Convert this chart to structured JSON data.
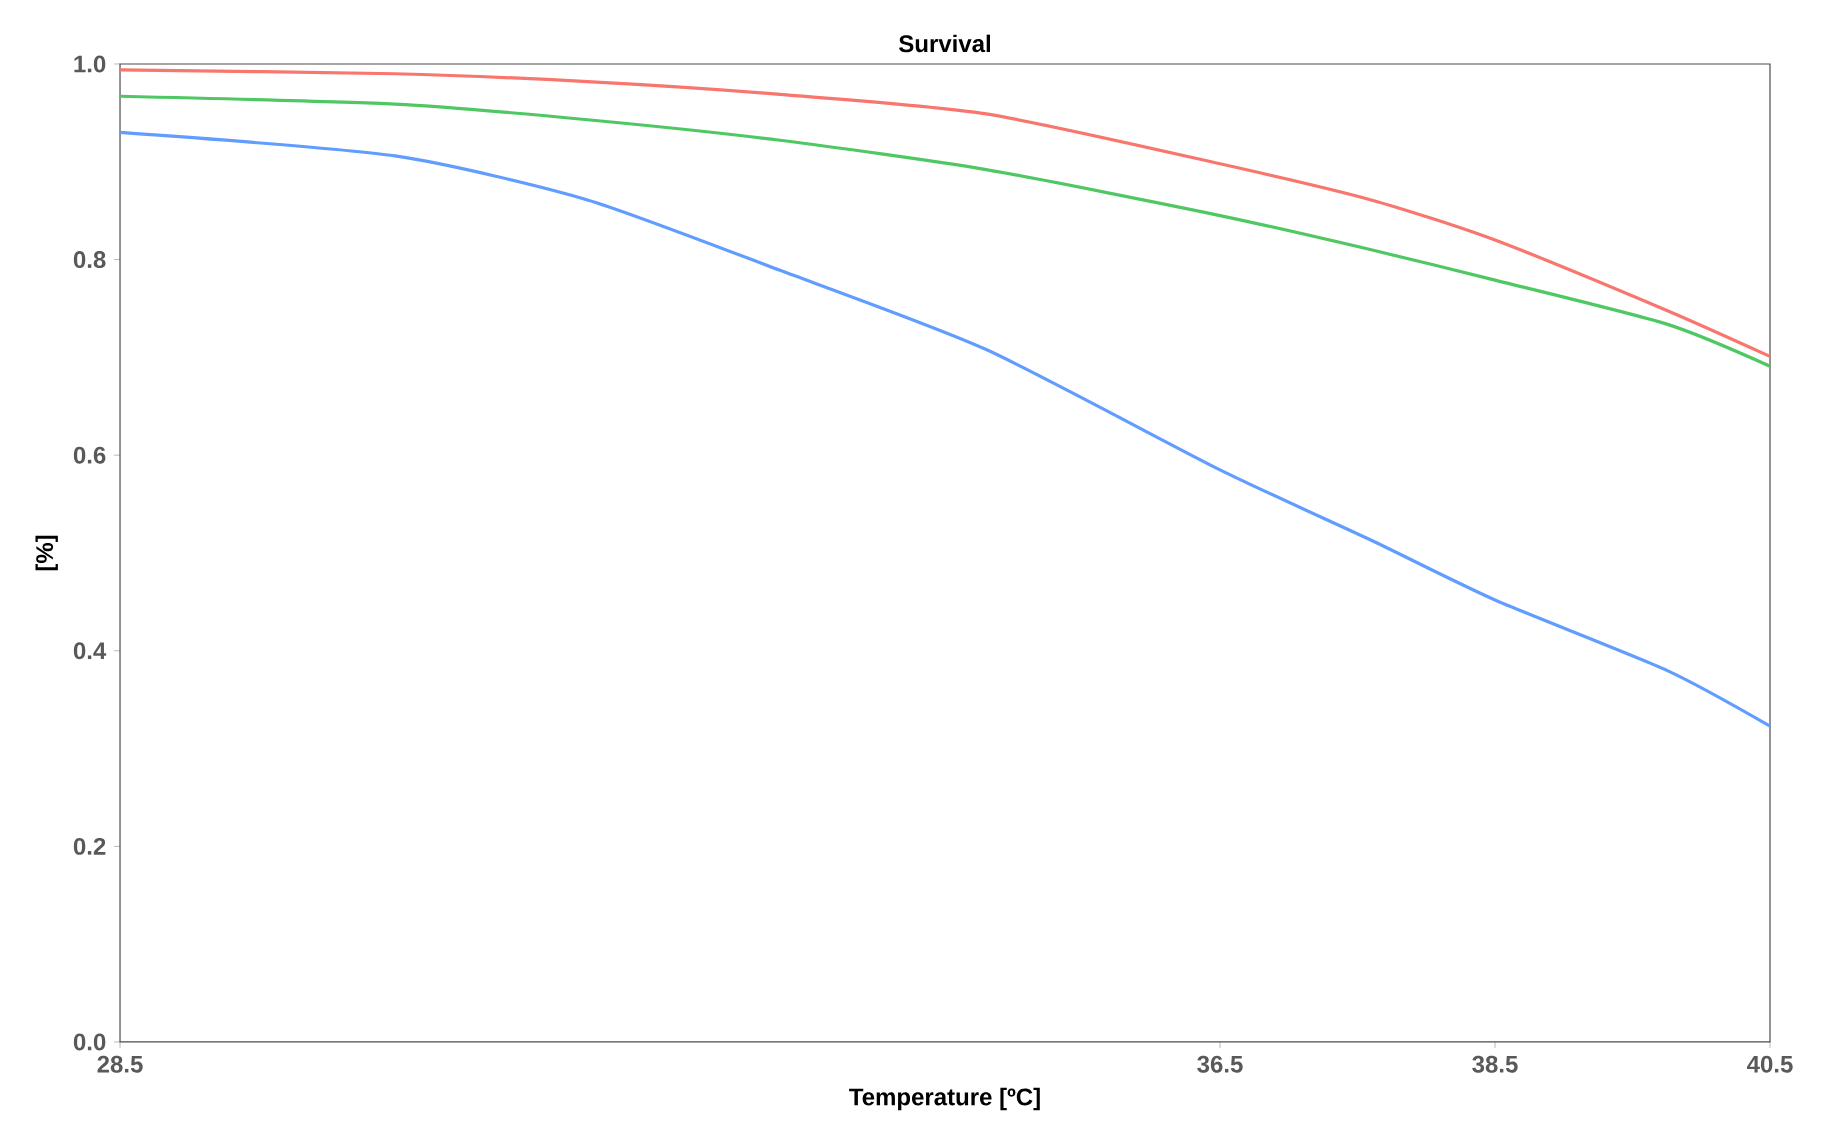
{
  "chart_data": {
    "type": "line",
    "title": "Survival",
    "xlabel": "Temperature [ºC]",
    "ylabel": "[%]",
    "x": [
      28.5,
      30.5,
      31.9,
      33.3,
      34.8,
      36.5,
      37.6,
      38.5,
      39.75,
      40.5
    ],
    "series": [
      {
        "color": "#f8766d",
        "values": [
          0.994,
          0.99,
          0.982,
          0.969,
          0.949,
          0.898,
          0.861,
          0.82,
          0.748,
          0.701
        ]
      },
      {
        "color": "#4fc864",
        "values": [
          0.967,
          0.959,
          0.943,
          0.922,
          0.892,
          0.845,
          0.81,
          0.779,
          0.734,
          0.691
        ]
      },
      {
        "color": "#619cff",
        "values": [
          0.93,
          0.906,
          0.861,
          0.789,
          0.708,
          0.585,
          0.513,
          0.452,
          0.38,
          0.323
        ]
      }
    ],
    "xlim": [
      28.5,
      40.5
    ],
    "ylim": [
      0,
      1
    ],
    "xticks": [
      28.5,
      36.5,
      38.5,
      40.5
    ],
    "yticks": [
      {
        "value": 0,
        "label": "0.0"
      },
      {
        "value": 0.2,
        "label": "0.2"
      },
      {
        "value": 0.4,
        "label": "0.4"
      },
      {
        "value": 0.6,
        "label": "0.6"
      },
      {
        "value": 0.8,
        "label": "0.8"
      },
      {
        "value": 1,
        "label": "1.0"
      }
    ],
    "grid": false,
    "marker": "none",
    "line_style": "solid"
  }
}
